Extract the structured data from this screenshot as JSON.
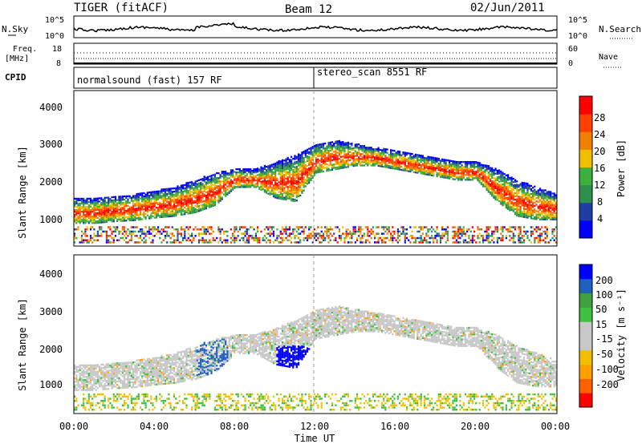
{
  "header": {
    "radar": "TIGER (fitACF)",
    "beam": "Beam 12",
    "date": "02/Jun/2011"
  },
  "noise_panel": {
    "left_label": "N.Sky",
    "right_label": "N.Search",
    "y_ticks_left": [
      "10^5",
      "10^0"
    ],
    "y_ticks_right": [
      "10^5",
      "10^0"
    ]
  },
  "freq_panel": {
    "left_label_1": "Freq.",
    "left_label_2": "[MHz]",
    "right_label": "Nave",
    "y_ticks_left": [
      "18",
      "8"
    ],
    "y_ticks_right": [
      "60",
      "0"
    ]
  },
  "cpid_panel": {
    "label": "CPID",
    "programs": [
      "normalsound (fast) 157 RF",
      "stereo_scan 8551 RF"
    ]
  },
  "colors": {
    "power": [
      "#0000ff",
      "#1f3fa0",
      "#2f8f4f",
      "#3caf3c",
      "#f0c000",
      "#f08000",
      "#ff4000",
      "#ff0000"
    ],
    "velocity": [
      "#ff0000",
      "#ff6000",
      "#ff9f00",
      "#f0c000",
      "#c8c8c8",
      "#c8c8c8",
      "#40c040",
      "#40a040",
      "#2060c0",
      "#0000ff"
    ],
    "grey": "#c8c8c8"
  },
  "chart_data": [
    {
      "type": "heatmap",
      "name": "power",
      "xlabel": "",
      "ylabel": "Slant Range [km]",
      "ylim": [
        180,
        4500
      ],
      "y_ticks": [
        "1000",
        "2000",
        "3000",
        "4000"
      ],
      "colorbar_label": "Power [dB]",
      "colorbar_ticks": [
        "4",
        "8",
        "12",
        "16",
        "20",
        "24",
        "28"
      ],
      "bands": [
        {
          "x": [
            0,
            1,
            2,
            3,
            4,
            5,
            6,
            7,
            8,
            9,
            10,
            11,
            12,
            13,
            14,
            15,
            16,
            17,
            18,
            19,
            20,
            21,
            22,
            23,
            24
          ],
          "lo": [
            800,
            800,
            850,
            880,
            950,
            1000,
            1100,
            1300,
            1800,
            1800,
            1500,
            1400,
            2200,
            2300,
            2400,
            2400,
            2300,
            2200,
            2100,
            2000,
            2000,
            1400,
            1000,
            900,
            900
          ],
          "hi": [
            1500,
            1500,
            1550,
            1600,
            1700,
            1800,
            2000,
            2200,
            2300,
            2300,
            2500,
            2700,
            3000,
            3100,
            3000,
            2900,
            2800,
            2700,
            2600,
            2500,
            2500,
            2300,
            2000,
            1800,
            1600
          ]
        }
      ]
    },
    {
      "type": "heatmap",
      "name": "velocity",
      "xlabel": "Time UT",
      "ylabel": "Slant Range [km]",
      "ylim": [
        180,
        4500
      ],
      "y_ticks": [
        "1000",
        "2000",
        "3000",
        "4000"
      ],
      "x_ticks": [
        "00:00",
        "04:00",
        "08:00",
        "12:00",
        "16:00",
        "20:00",
        "00:00"
      ],
      "colorbar_label": "Velocity [m s⁻¹]",
      "colorbar_ticks": [
        "200",
        "100",
        "50",
        "15",
        "-15",
        "-50",
        "-100",
        "-200"
      ]
    }
  ]
}
